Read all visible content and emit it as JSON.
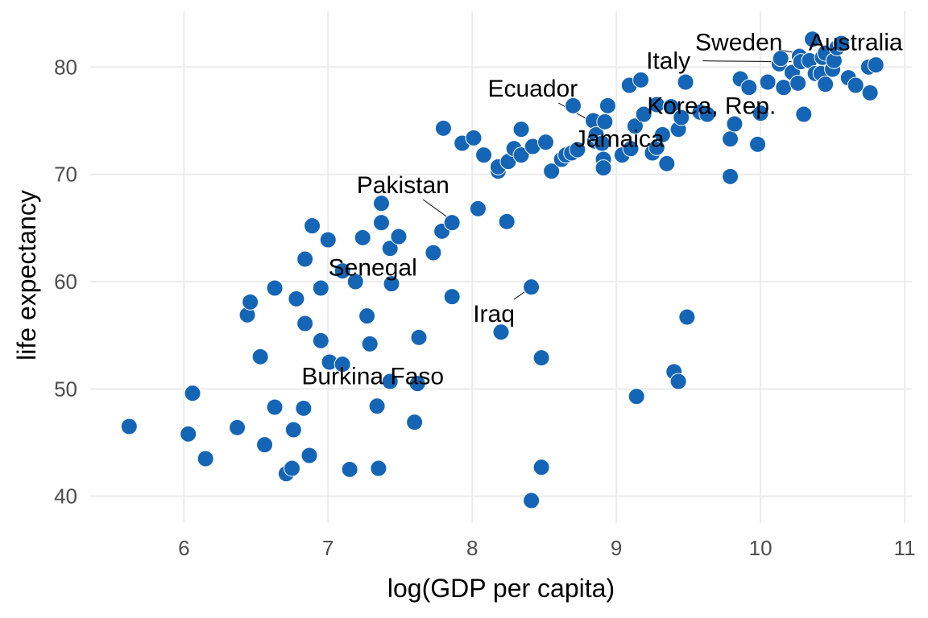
{
  "chart_data": {
    "type": "scatter",
    "xlabel": "log(GDP per capita)",
    "ylabel": "life expectancy",
    "xlim": [
      5.35,
      11.05
    ],
    "ylim": [
      37.5,
      85.2
    ],
    "x_ticks": [
      6,
      7,
      8,
      9,
      10,
      11
    ],
    "y_ticks": [
      40,
      50,
      60,
      70,
      80
    ],
    "grid": true,
    "point_color": "#1565b6",
    "points": [
      {
        "x": 5.62,
        "y": 46.5
      },
      {
        "x": 6.03,
        "y": 45.8
      },
      {
        "x": 6.06,
        "y": 49.6
      },
      {
        "x": 6.15,
        "y": 43.5
      },
      {
        "x": 6.37,
        "y": 46.4
      },
      {
        "x": 6.44,
        "y": 56.9
      },
      {
        "x": 6.46,
        "y": 58.1
      },
      {
        "x": 6.53,
        "y": 53.0
      },
      {
        "x": 6.56,
        "y": 44.8
      },
      {
        "x": 6.63,
        "y": 48.3
      },
      {
        "x": 6.63,
        "y": 59.4
      },
      {
        "x": 6.71,
        "y": 42.1
      },
      {
        "x": 6.75,
        "y": 42.6
      },
      {
        "x": 6.76,
        "y": 46.2
      },
      {
        "x": 6.78,
        "y": 58.4
      },
      {
        "x": 6.83,
        "y": 48.2
      },
      {
        "x": 6.84,
        "y": 62.1
      },
      {
        "x": 6.84,
        "y": 56.1
      },
      {
        "x": 6.87,
        "y": 43.8
      },
      {
        "x": 6.89,
        "y": 65.2
      },
      {
        "x": 6.95,
        "y": 59.4
      },
      {
        "x": 6.95,
        "y": 54.5
      },
      {
        "x": 7.0,
        "y": 63.9
      },
      {
        "x": 7.01,
        "y": 52.5
      },
      {
        "x": 7.1,
        "y": 52.3
      },
      {
        "x": 7.1,
        "y": 61.0
      },
      {
        "x": 7.15,
        "y": 42.5
      },
      {
        "x": 7.19,
        "y": 60.0
      },
      {
        "x": 7.24,
        "y": 64.1
      },
      {
        "x": 7.27,
        "y": 56.8
      },
      {
        "x": 7.29,
        "y": 54.2
      },
      {
        "x": 7.34,
        "y": 48.4
      },
      {
        "x": 7.35,
        "y": 42.6
      },
      {
        "x": 7.37,
        "y": 65.5
      },
      {
        "x": 7.37,
        "y": 67.3
      },
      {
        "x": 7.43,
        "y": 50.7
      },
      {
        "x": 7.43,
        "y": 63.1
      },
      {
        "x": 7.44,
        "y": 59.8
      },
      {
        "x": 7.49,
        "y": 64.2
      },
      {
        "x": 7.6,
        "y": 46.9
      },
      {
        "x": 7.62,
        "y": 50.5
      },
      {
        "x": 7.63,
        "y": 54.8
      },
      {
        "x": 7.73,
        "y": 62.7
      },
      {
        "x": 7.79,
        "y": 64.7
      },
      {
        "x": 7.8,
        "y": 74.3
      },
      {
        "x": 7.86,
        "y": 58.6
      },
      {
        "x": 7.86,
        "y": 65.5
      },
      {
        "x": 7.93,
        "y": 72.9
      },
      {
        "x": 8.01,
        "y": 73.4
      },
      {
        "x": 8.04,
        "y": 66.8
      },
      {
        "x": 8.08,
        "y": 71.8
      },
      {
        "x": 8.18,
        "y": 70.3
      },
      {
        "x": 8.18,
        "y": 70.7
      },
      {
        "x": 8.2,
        "y": 55.3
      },
      {
        "x": 8.24,
        "y": 65.6
      },
      {
        "x": 8.25,
        "y": 71.2
      },
      {
        "x": 8.29,
        "y": 72.4
      },
      {
        "x": 8.34,
        "y": 71.8
      },
      {
        "x": 8.34,
        "y": 74.2
      },
      {
        "x": 8.41,
        "y": 59.5
      },
      {
        "x": 8.41,
        "y": 39.6
      },
      {
        "x": 8.42,
        "y": 72.6
      },
      {
        "x": 8.48,
        "y": 42.7
      },
      {
        "x": 8.48,
        "y": 52.9
      },
      {
        "x": 8.51,
        "y": 73.0
      },
      {
        "x": 8.55,
        "y": 70.3
      },
      {
        "x": 8.62,
        "y": 71.4
      },
      {
        "x": 8.65,
        "y": 71.8
      },
      {
        "x": 8.69,
        "y": 72.0
      },
      {
        "x": 8.7,
        "y": 76.4
      },
      {
        "x": 8.73,
        "y": 72.3
      },
      {
        "x": 8.84,
        "y": 75.0
      },
      {
        "x": 8.85,
        "y": 73.1
      },
      {
        "x": 8.86,
        "y": 73.7
      },
      {
        "x": 8.9,
        "y": 72.9
      },
      {
        "x": 8.91,
        "y": 71.4
      },
      {
        "x": 8.91,
        "y": 70.6
      },
      {
        "x": 8.92,
        "y": 74.9
      },
      {
        "x": 8.94,
        "y": 76.4
      },
      {
        "x": 9.04,
        "y": 71.8
      },
      {
        "x": 9.09,
        "y": 78.3
      },
      {
        "x": 9.1,
        "y": 72.4
      },
      {
        "x": 9.13,
        "y": 74.5
      },
      {
        "x": 9.14,
        "y": 49.3
      },
      {
        "x": 9.17,
        "y": 78.8
      },
      {
        "x": 9.19,
        "y": 75.6
      },
      {
        "x": 9.25,
        "y": 72.0
      },
      {
        "x": 9.28,
        "y": 72.5
      },
      {
        "x": 9.28,
        "y": 76.5
      },
      {
        "x": 9.32,
        "y": 73.7
      },
      {
        "x": 9.35,
        "y": 71.0
      },
      {
        "x": 9.38,
        "y": 76.3
      },
      {
        "x": 9.4,
        "y": 51.6
      },
      {
        "x": 9.43,
        "y": 74.2
      },
      {
        "x": 9.43,
        "y": 50.7
      },
      {
        "x": 9.45,
        "y": 75.3
      },
      {
        "x": 9.48,
        "y": 78.6
      },
      {
        "x": 9.49,
        "y": 56.7
      },
      {
        "x": 9.58,
        "y": 75.8
      },
      {
        "x": 9.63,
        "y": 75.6
      },
      {
        "x": 9.79,
        "y": 73.3
      },
      {
        "x": 9.79,
        "y": 69.8
      },
      {
        "x": 9.82,
        "y": 74.7
      },
      {
        "x": 9.86,
        "y": 78.9
      },
      {
        "x": 9.92,
        "y": 78.1
      },
      {
        "x": 9.98,
        "y": 72.8
      },
      {
        "x": 10.0,
        "y": 75.7
      },
      {
        "x": 10.05,
        "y": 78.6
      },
      {
        "x": 10.13,
        "y": 80.3
      },
      {
        "x": 10.14,
        "y": 80.8
      },
      {
        "x": 10.16,
        "y": 78.1
      },
      {
        "x": 10.22,
        "y": 79.5
      },
      {
        "x": 10.26,
        "y": 78.5
      },
      {
        "x": 10.27,
        "y": 81.0
      },
      {
        "x": 10.28,
        "y": 80.5
      },
      {
        "x": 10.3,
        "y": 75.6
      },
      {
        "x": 10.34,
        "y": 80.6
      },
      {
        "x": 10.36,
        "y": 82.6
      },
      {
        "x": 10.38,
        "y": 79.4
      },
      {
        "x": 10.42,
        "y": 79.4
      },
      {
        "x": 10.43,
        "y": 80.9
      },
      {
        "x": 10.45,
        "y": 81.3
      },
      {
        "x": 10.45,
        "y": 78.4
      },
      {
        "x": 10.5,
        "y": 79.8
      },
      {
        "x": 10.51,
        "y": 80.6
      },
      {
        "x": 10.53,
        "y": 81.8
      },
      {
        "x": 10.56,
        "y": 82.2
      },
      {
        "x": 10.61,
        "y": 79.0
      },
      {
        "x": 10.66,
        "y": 78.3
      },
      {
        "x": 10.75,
        "y": 80.0
      },
      {
        "x": 10.76,
        "y": 77.6
      },
      {
        "x": 10.8,
        "y": 80.2
      }
    ],
    "annotations": [
      {
        "label": "Sweden",
        "x": 10.42,
        "y": 80.9,
        "lx": 9.85,
        "ly": 82.3
      },
      {
        "label": "Australia",
        "x": 10.5,
        "y": 81.2,
        "lx": 10.66,
        "ly": 82.3
      },
      {
        "label": "Italy",
        "x": 10.26,
        "y": 80.5,
        "lx": 9.36,
        "ly": 80.6
      },
      {
        "label": "Ecuador",
        "x": 8.83,
        "y": 74.9,
        "lx": 8.42,
        "ly": 78.0
      },
      {
        "label": "Korea, Rep.",
        "x": 9.35,
        "y": 76.1,
        "lx": 9.66,
        "ly": 76.4
      },
      {
        "label": "Jamaica",
        "x": 8.96,
        "y": 73.6,
        "lx": 9.02,
        "ly": 73.3
      },
      {
        "label": "Pakistan",
        "x": 7.87,
        "y": 65.6,
        "lx": 7.52,
        "ly": 69.0
      },
      {
        "label": "Senegal",
        "x": 7.43,
        "y": 63.3,
        "lx": 7.31,
        "ly": 61.3
      },
      {
        "label": "Iraq",
        "x": 8.41,
        "y": 59.5,
        "lx": 8.15,
        "ly": 57.0
      },
      {
        "label": "Burkina Faso",
        "x": 7.43,
        "y": 50.7,
        "lx": 7.31,
        "ly": 51.2
      }
    ]
  }
}
